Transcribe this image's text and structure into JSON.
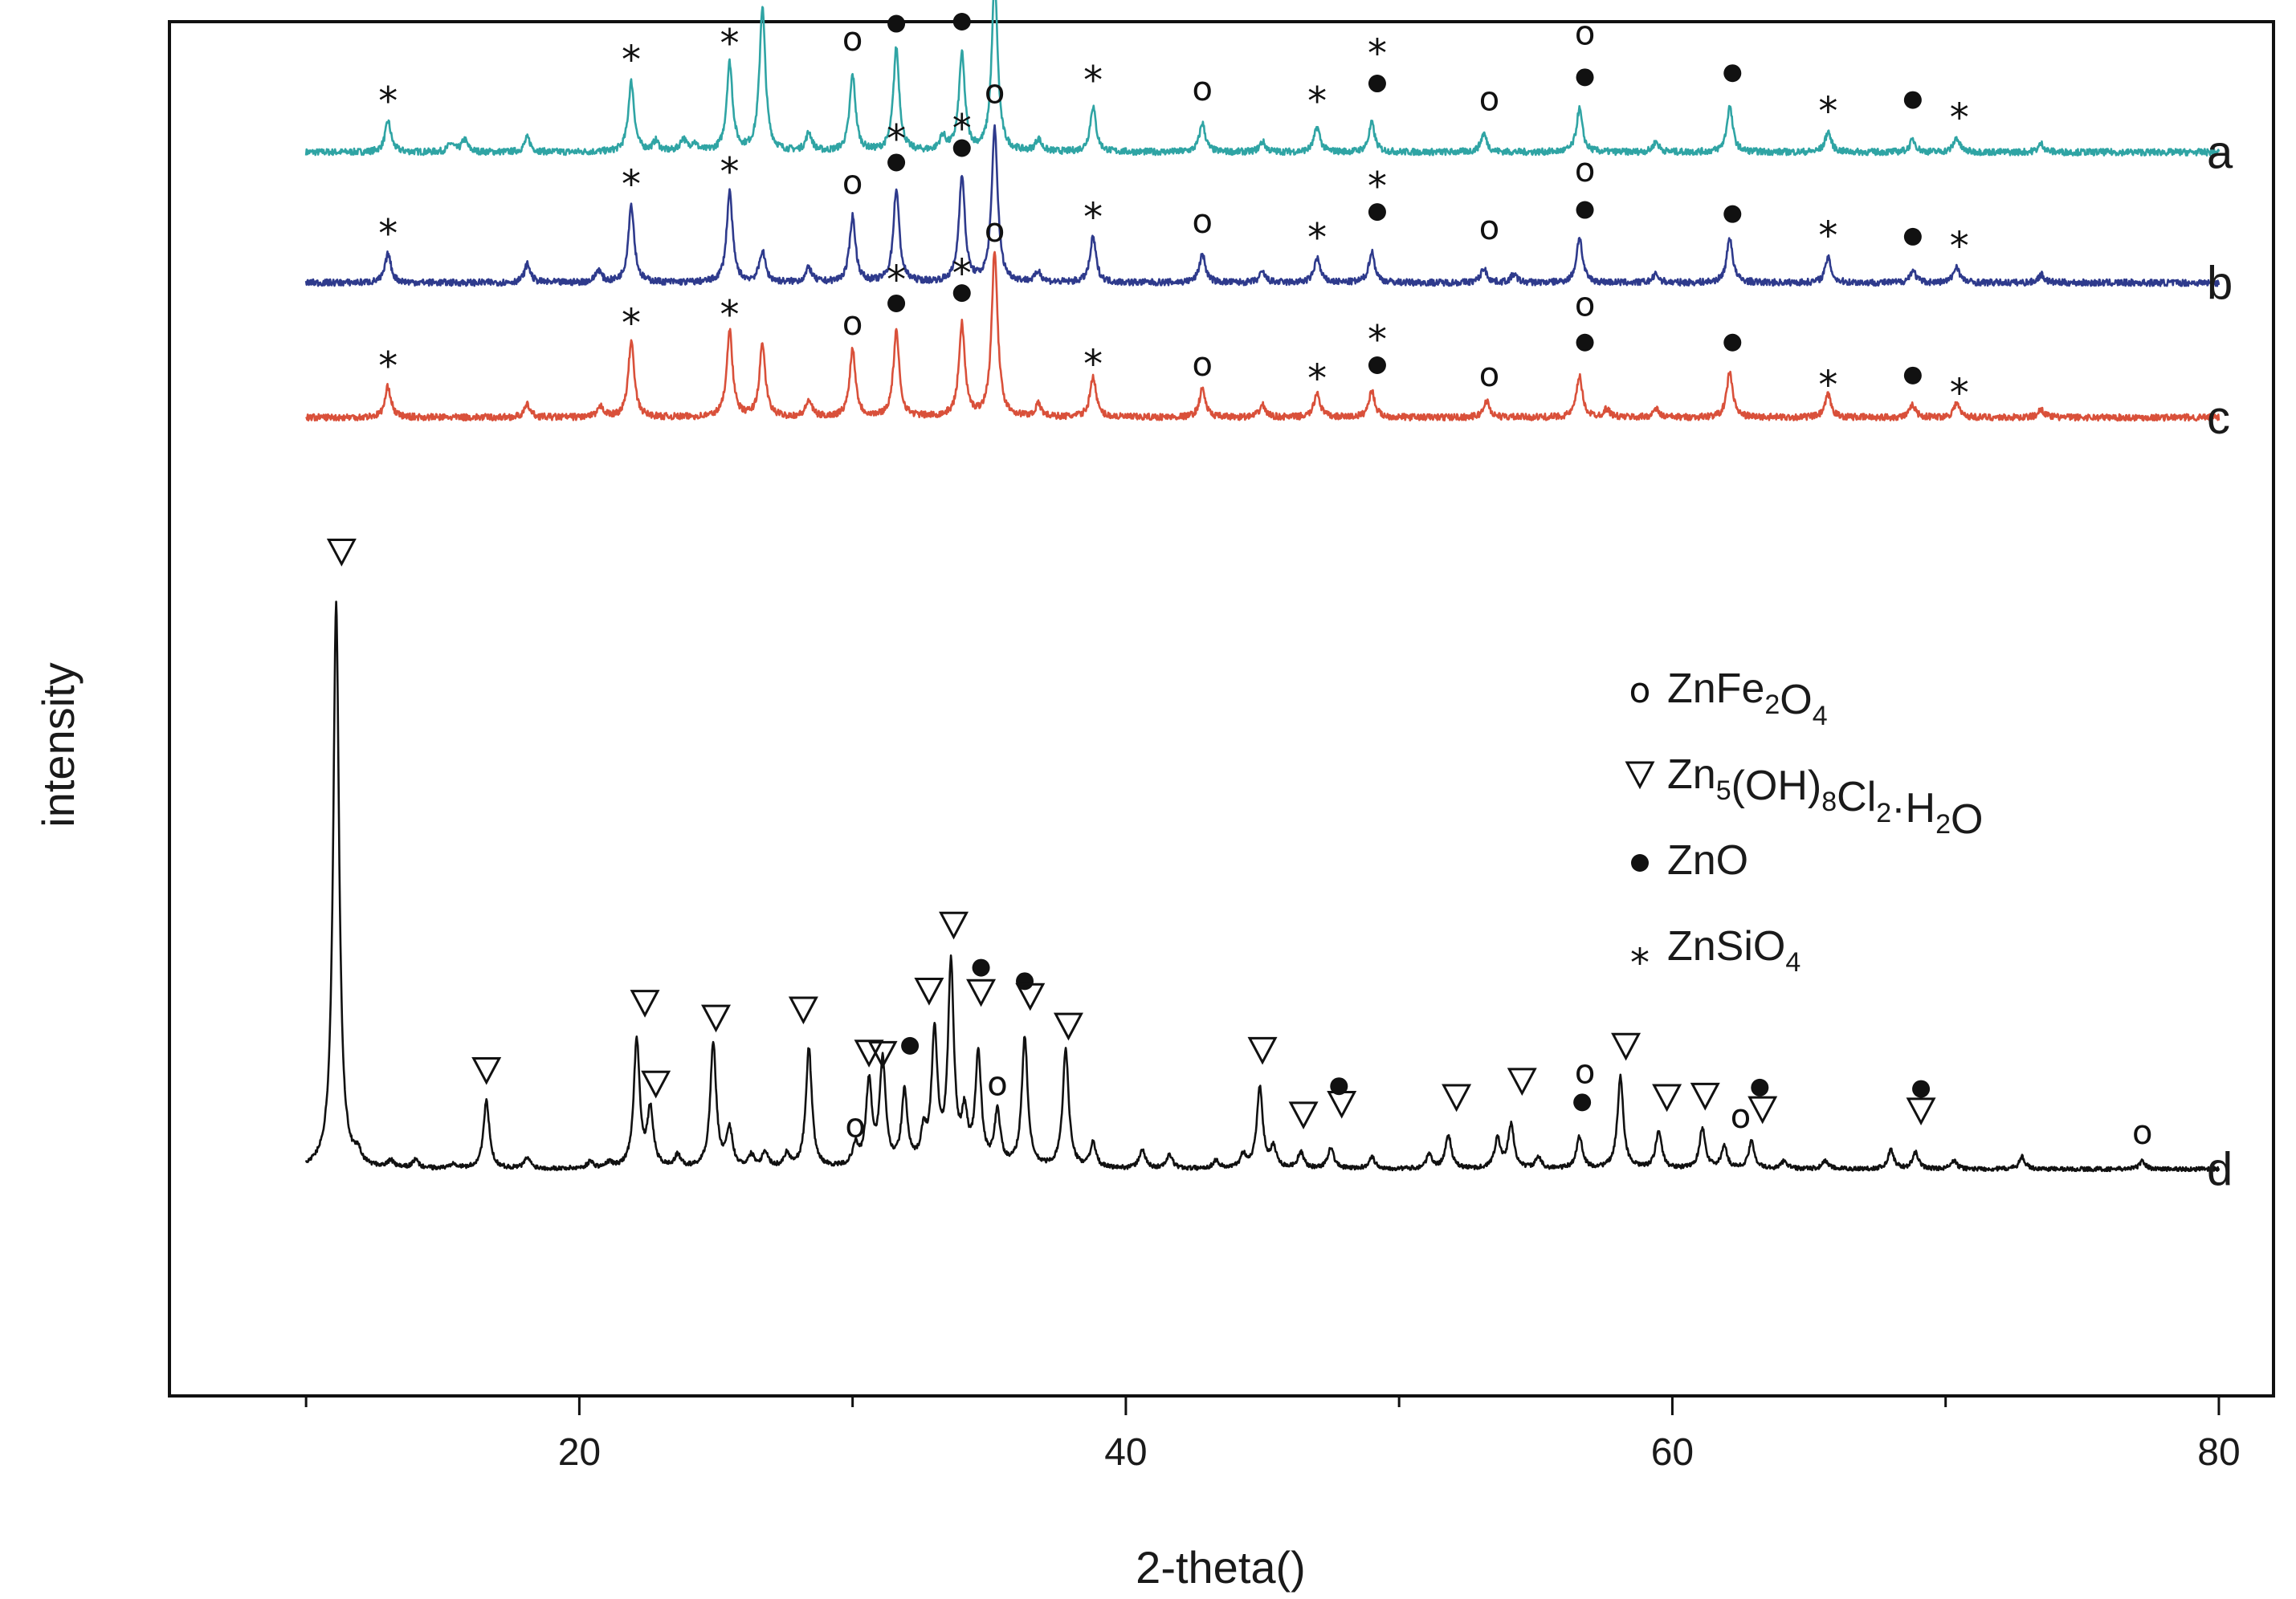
{
  "chart_data": {
    "type": "line",
    "xlabel": "2-theta()",
    "ylabel": "intensity",
    "xlim": [
      5,
      82
    ],
    "xticks": [
      20,
      40,
      60,
      80
    ],
    "x_minor_step": 10,
    "x_start": 10,
    "x_end": 80,
    "grid": false,
    "legend_position": "middle-right",
    "legend": [
      {
        "symbol": "o",
        "name": "ZnFe2O4",
        "parts": [
          [
            "ZnFe",
            false
          ],
          [
            "2",
            true
          ],
          [
            "O",
            false
          ],
          [
            "4",
            true
          ]
        ]
      },
      {
        "symbol": "▽",
        "name": "Zn5(OH)8Cl2·H2O",
        "parts": [
          [
            "Zn",
            false
          ],
          [
            "5",
            true
          ],
          [
            "(OH)",
            false
          ],
          [
            "8",
            true
          ],
          [
            "Cl",
            false
          ],
          [
            "2",
            true
          ],
          [
            "·H",
            false
          ],
          [
            "2",
            true
          ],
          [
            "O",
            false
          ]
        ]
      },
      {
        "symbol": "●",
        "name": "ZnO",
        "parts": [
          [
            "ZnO",
            false
          ]
        ]
      },
      {
        "symbol": "*",
        "name": "ZnSiO4",
        "parts": [
          [
            "ZnSi",
            false
          ],
          [
            "O",
            false
          ],
          [
            "4",
            true
          ]
        ]
      }
    ],
    "series": [
      {
        "name": "a",
        "color": "#2fa4a4",
        "baseline": 0.905,
        "ppu": 0.0015,
        "peaks": [
          [
            13,
            15
          ],
          [
            15.3,
            4
          ],
          [
            15.8,
            6
          ],
          [
            18.1,
            7
          ],
          [
            21.9,
            34
          ],
          [
            22.8,
            5
          ],
          [
            23.8,
            6
          ],
          [
            24.2,
            4
          ],
          [
            25.5,
            43
          ],
          [
            26.7,
            70
          ],
          [
            28.4,
            9
          ],
          [
            30,
            37
          ],
          [
            31.6,
            50
          ],
          [
            33.3,
            7
          ],
          [
            34,
            47
          ],
          [
            35.2,
            83
          ],
          [
            36.8,
            6
          ],
          [
            38.8,
            22
          ],
          [
            42.8,
            14
          ],
          [
            45,
            5
          ],
          [
            47,
            12
          ],
          [
            49,
            14
          ],
          [
            53.1,
            9
          ],
          [
            56.6,
            21
          ],
          [
            59.4,
            5
          ],
          [
            62.1,
            22
          ],
          [
            65.7,
            10
          ],
          [
            68.8,
            6
          ],
          [
            70.4,
            7
          ],
          [
            73.5,
            4
          ]
        ],
        "markers": [
          [
            "*",
            13,
            27
          ],
          [
            "*",
            21.9,
            47
          ],
          [
            "*",
            25.5,
            55
          ],
          [
            "o",
            30,
            50
          ],
          [
            "*",
            31.6,
            79
          ],
          [
            "●",
            31.6,
            60
          ],
          [
            "*",
            34,
            78
          ],
          [
            "●",
            34,
            61
          ],
          [
            "o",
            35.2,
            97
          ],
          [
            "*",
            38.8,
            37
          ],
          [
            "o",
            42.8,
            26
          ],
          [
            "*",
            47,
            27
          ],
          [
            "*",
            49.2,
            50
          ],
          [
            "●",
            49.2,
            31
          ],
          [
            "o",
            53.3,
            21
          ],
          [
            "o",
            56.8,
            53
          ],
          [
            "●",
            56.8,
            34
          ],
          [
            "●",
            62.2,
            36
          ],
          [
            "*",
            65.7,
            22
          ],
          [
            "●",
            68.8,
            23
          ],
          [
            "*",
            70.5,
            19
          ]
        ]
      },
      {
        "name": "b",
        "color": "#2e3a8c",
        "baseline": 0.81,
        "ppu": 0.0015,
        "peaks": [
          [
            13,
            14
          ],
          [
            18.1,
            9
          ],
          [
            20.7,
            6
          ],
          [
            21.9,
            38
          ],
          [
            25.5,
            44
          ],
          [
            26.7,
            15
          ],
          [
            28.4,
            7
          ],
          [
            30,
            32
          ],
          [
            31.6,
            45
          ],
          [
            34,
            52
          ],
          [
            35.2,
            75
          ],
          [
            36.8,
            5
          ],
          [
            38.8,
            22
          ],
          [
            42.8,
            14
          ],
          [
            45,
            5
          ],
          [
            47,
            12
          ],
          [
            49,
            15
          ],
          [
            53.1,
            7
          ],
          [
            54.2,
            4
          ],
          [
            56.6,
            22
          ],
          [
            59.4,
            4
          ],
          [
            62.1,
            22
          ],
          [
            65.7,
            12
          ],
          [
            68.8,
            6
          ],
          [
            70.4,
            8
          ],
          [
            73.5,
            4
          ]
        ],
        "markers": [
          [
            "*",
            13,
            26
          ],
          [
            "*",
            21.9,
            50
          ],
          [
            "*",
            25.5,
            56
          ],
          [
            "o",
            30,
            44
          ],
          [
            "*",
            31.6,
            72
          ],
          [
            "●",
            31.6,
            56
          ],
          [
            "*",
            34,
            77
          ],
          [
            "●",
            34,
            63
          ],
          [
            "o",
            35.2,
            88
          ],
          [
            "*",
            38.8,
            34
          ],
          [
            "o",
            42.8,
            25
          ],
          [
            "*",
            47,
            24
          ],
          [
            "*",
            49.2,
            49
          ],
          [
            "●",
            49.2,
            32
          ],
          [
            "o",
            53.3,
            22
          ],
          [
            "o",
            56.8,
            50
          ],
          [
            "●",
            56.8,
            33
          ],
          [
            "●",
            62.2,
            31
          ],
          [
            "*",
            65.7,
            25
          ],
          [
            "●",
            68.8,
            20
          ],
          [
            "*",
            70.5,
            20
          ]
        ]
      },
      {
        "name": "c",
        "color": "#d9503a",
        "baseline": 0.712,
        "ppu": 0.0015,
        "peaks": [
          [
            13,
            15
          ],
          [
            18.1,
            6
          ],
          [
            20.8,
            5
          ],
          [
            21.9,
            37
          ],
          [
            25.5,
            42
          ],
          [
            26.7,
            35
          ],
          [
            28.4,
            8
          ],
          [
            30,
            33
          ],
          [
            31.6,
            41
          ],
          [
            34,
            45
          ],
          [
            35.2,
            81
          ],
          [
            36.8,
            6
          ],
          [
            38.8,
            20
          ],
          [
            42.8,
            14
          ],
          [
            45,
            6
          ],
          [
            47,
            12
          ],
          [
            49,
            13
          ],
          [
            53.2,
            8
          ],
          [
            56.6,
            20
          ],
          [
            57.6,
            4
          ],
          [
            59.4,
            4
          ],
          [
            62.1,
            22
          ],
          [
            65.7,
            11
          ],
          [
            68.8,
            6
          ],
          [
            70.4,
            7
          ],
          [
            73.5,
            4
          ]
        ],
        "markers": [
          [
            "*",
            13,
            27
          ],
          [
            "*",
            21.9,
            48
          ],
          [
            "*",
            25.5,
            52
          ],
          [
            "o",
            30,
            41
          ],
          [
            "*",
            31.6,
            69
          ],
          [
            "●",
            31.6,
            53
          ],
          [
            "*",
            34,
            72
          ],
          [
            "●",
            34,
            58
          ],
          [
            "o",
            35.2,
            86
          ],
          [
            "*",
            38.8,
            28
          ],
          [
            "o",
            42.8,
            21
          ],
          [
            "*",
            47,
            21
          ],
          [
            "*",
            49.2,
            40
          ],
          [
            "●",
            49.2,
            23
          ],
          [
            "o",
            53.3,
            16
          ],
          [
            "o",
            56.8,
            50
          ],
          [
            "●",
            56.8,
            34
          ],
          [
            "●",
            62.2,
            34
          ],
          [
            "*",
            65.7,
            18
          ],
          [
            "●",
            68.8,
            18
          ],
          [
            "*",
            70.5,
            14
          ]
        ]
      },
      {
        "name": "d",
        "color": "#111111",
        "baseline": 0.165,
        "ppu": 0.00098,
        "peaks": [
          [
            11.1,
            420
          ],
          [
            11.9,
            8
          ],
          [
            13.1,
            5
          ],
          [
            14,
            6
          ],
          [
            15.4,
            4
          ],
          [
            16.6,
            50
          ],
          [
            18.1,
            8
          ],
          [
            20.4,
            5
          ],
          [
            21.1,
            4
          ],
          [
            22.1,
            95
          ],
          [
            22.6,
            42
          ],
          [
            23.6,
            9
          ],
          [
            24.9,
            93
          ],
          [
            25.5,
            28
          ],
          [
            26.3,
            9
          ],
          [
            26.8,
            12
          ],
          [
            27.6,
            10
          ],
          [
            28.4,
            89
          ],
          [
            30.1,
            15
          ],
          [
            30.6,
            62
          ],
          [
            31.1,
            78
          ],
          [
            31.9,
            54
          ],
          [
            32.6,
            22
          ],
          [
            33,
            97
          ],
          [
            33.6,
            148
          ],
          [
            34.1,
            35
          ],
          [
            34.6,
            82
          ],
          [
            35.3,
            40
          ],
          [
            36.3,
            96
          ],
          [
            37.8,
            88
          ],
          [
            38.8,
            18
          ],
          [
            40.6,
            14
          ],
          [
            41.6,
            10
          ],
          [
            43.3,
            6
          ],
          [
            44.3,
            10
          ],
          [
            44.9,
            60
          ],
          [
            45.4,
            15
          ],
          [
            46.4,
            12
          ],
          [
            47.5,
            16
          ],
          [
            49,
            9
          ],
          [
            51.1,
            10
          ],
          [
            51.8,
            25
          ],
          [
            53.6,
            22
          ],
          [
            54.1,
            32
          ],
          [
            55.1,
            8
          ],
          [
            56.6,
            24
          ],
          [
            58.1,
            68
          ],
          [
            59.5,
            28
          ],
          [
            61.1,
            30
          ],
          [
            61.9,
            16
          ],
          [
            62.9,
            20
          ],
          [
            64.1,
            6
          ],
          [
            65.6,
            6
          ],
          [
            68,
            14
          ],
          [
            68.9,
            12
          ],
          [
            70.3,
            6
          ],
          [
            72.8,
            9
          ],
          [
            77.2,
            6
          ]
        ],
        "markers": [
          [
            "▽",
            11.3,
            447
          ],
          [
            "▽",
            16.6,
            62
          ],
          [
            "▽",
            22.4,
            112
          ],
          [
            "▽",
            22.8,
            52
          ],
          [
            "▽",
            25,
            101
          ],
          [
            "▽",
            28.2,
            107
          ],
          [
            "o",
            30.1,
            25
          ],
          [
            "▽",
            30.6,
            75
          ],
          [
            "▽",
            31.1,
            74
          ],
          [
            "●",
            32.1,
            88
          ],
          [
            "▽",
            32.8,
            121
          ],
          [
            "▽",
            33.7,
            170
          ],
          [
            "●",
            34.7,
            146
          ],
          [
            "▽",
            34.7,
            120
          ],
          [
            "o",
            35.3,
            56
          ],
          [
            "●",
            36.3,
            136
          ],
          [
            "▽",
            36.5,
            117
          ],
          [
            "▽",
            37.9,
            95
          ],
          [
            "▽",
            45,
            77
          ],
          [
            "●",
            47.8,
            58
          ],
          [
            "▽",
            46.5,
            29
          ],
          [
            "▽",
            47.9,
            37
          ],
          [
            "▽",
            52.1,
            42
          ],
          [
            "▽",
            54.5,
            54
          ],
          [
            "o",
            56.8,
            65
          ],
          [
            "●",
            56.7,
            46
          ],
          [
            "▽",
            58.3,
            80
          ],
          [
            "▽",
            59.8,
            42
          ],
          [
            "▽",
            61.2,
            43
          ],
          [
            "o",
            62.5,
            32
          ],
          [
            "▽",
            63.3,
            33
          ],
          [
            "●",
            63.2,
            57
          ],
          [
            "●",
            69.1,
            56
          ],
          [
            "▽",
            69.1,
            32
          ],
          [
            "o",
            77.2,
            20
          ]
        ]
      }
    ]
  }
}
